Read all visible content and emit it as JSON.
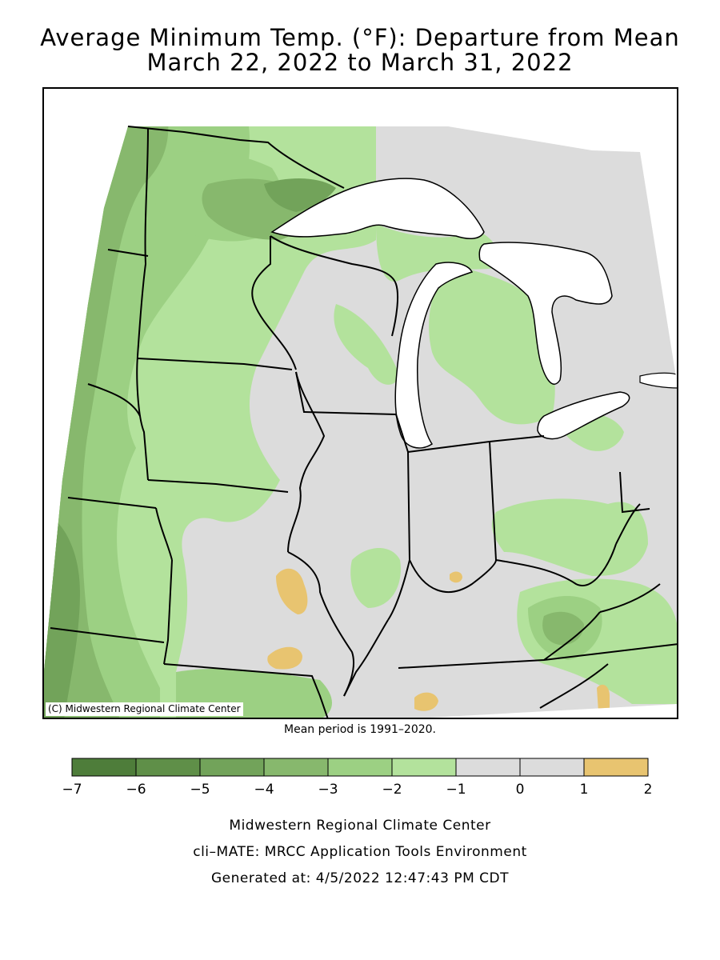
{
  "title_line1": "Average Minimum Temp. (°F): Departure from Mean",
  "title_line2": "March 22, 2022 to March 31, 2022",
  "copyright": "(C) Midwestern Regional Climate Center",
  "mean_note": "Mean period is 1991–2020.",
  "legend": {
    "colors": [
      "#4e7d3a",
      "#5f8f48",
      "#72a35a",
      "#87b86d",
      "#9cd083",
      "#b3e29c",
      "#dcdcdc",
      "#dcdcdc",
      "#e8c470"
    ],
    "ticks": [
      "−7",
      "−6",
      "−5",
      "−4",
      "−3",
      "−2",
      "−1",
      "0",
      "1",
      "2"
    ]
  },
  "footer": {
    "line1": "Midwestern Regional Climate Center",
    "line2": "cli–MATE: MRCC Application Tools Environment",
    "line3": "Generated at: 4/5/2022 12:47:43 PM CDT"
  },
  "map_colors": {
    "neutral": "#dcdcdc",
    "minus1_2": "#b3e29c",
    "minus2_3": "#9cd083",
    "minus3_4": "#87b86d",
    "minus4_5": "#72a35a",
    "minus5_6": "#5f8f48",
    "plus1_2": "#e8c470",
    "water": "#ffffff"
  }
}
